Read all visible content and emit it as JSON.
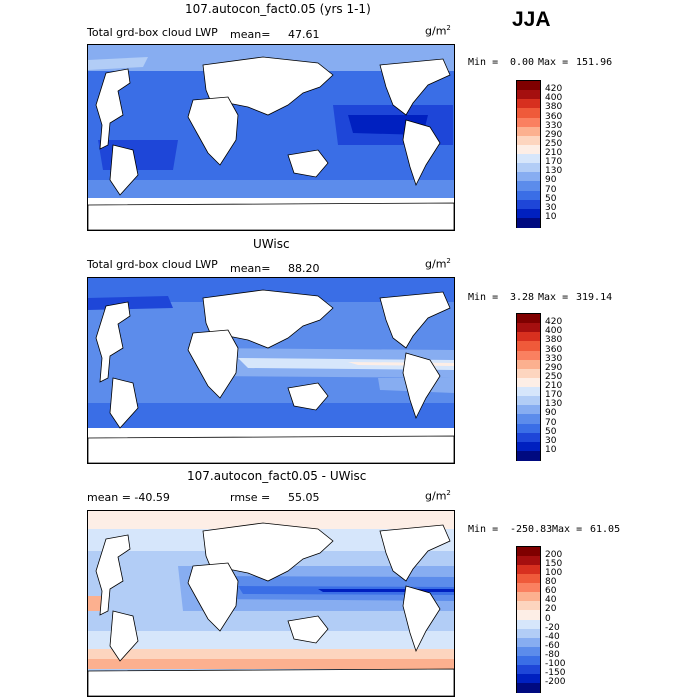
{
  "season": "JJA",
  "panels": [
    {
      "title": "107.autocon_fact0.05 (yrs 1-1)",
      "left_label": "Total grd-box cloud LWP",
      "mean_label": "mean=",
      "mean_value": "47.61",
      "units": "g/m",
      "units_sup": "2",
      "min_label": "Min =",
      "min_value": "0.00",
      "max_label": "Max =",
      "max_value": "151.96",
      "levels": [
        "420",
        "400",
        "380",
        "360",
        "330",
        "290",
        "250",
        "210",
        "170",
        "130",
        "90",
        "70",
        "50",
        "30",
        "10"
      ],
      "colors": [
        "#7f0000",
        "#a50f0f",
        "#d7301f",
        "#ef5a3a",
        "#fa8060",
        "#fcb08f",
        "#fdd5bf",
        "#fdeee6",
        "#d6e6fb",
        "#b2cdf6",
        "#87adf1",
        "#5c8ceb",
        "#3a6ee6",
        "#1e46d8",
        "#0020c0",
        "#000a80"
      ]
    },
    {
      "title": "UWisc",
      "left_label": "Total grd-box cloud LWP",
      "mean_label": "mean=",
      "mean_value": "88.20",
      "units": "g/m",
      "units_sup": "2",
      "min_label": "Min =",
      "min_value": "3.28",
      "max_label": "Max =",
      "max_value": "319.14",
      "levels": [
        "420",
        "400",
        "380",
        "360",
        "330",
        "290",
        "250",
        "210",
        "170",
        "130",
        "90",
        "70",
        "50",
        "30",
        "10"
      ],
      "colors": [
        "#7f0000",
        "#a50f0f",
        "#d7301f",
        "#ef5a3a",
        "#fa8060",
        "#fcb08f",
        "#fdd5bf",
        "#fdeee6",
        "#d6e6fb",
        "#b2cdf6",
        "#87adf1",
        "#5c8ceb",
        "#3a6ee6",
        "#1e46d8",
        "#0020c0",
        "#000a80"
      ]
    },
    {
      "title": "107.autocon_fact0.05 - UWisc",
      "left_label": "mean = -40.59",
      "rmse_label": "rmse =",
      "rmse_value": "55.05",
      "units": "g/m",
      "units_sup": "2",
      "min_label": "Min =",
      "min_value": "-250.83",
      "max_label": "Max =",
      "max_value": "61.05",
      "levels": [
        "200",
        "150",
        "100",
        "80",
        "60",
        "40",
        "20",
        "0",
        "-20",
        "-40",
        "-60",
        "-80",
        "-100",
        "-150",
        "-200"
      ],
      "colors": [
        "#7f0000",
        "#a50f0f",
        "#d7301f",
        "#ef5a3a",
        "#fa8060",
        "#fcb08f",
        "#fdd5bf",
        "#fdeee6",
        "#d6e6fb",
        "#b2cdf6",
        "#87adf1",
        "#5c8ceb",
        "#3a6ee6",
        "#1e46d8",
        "#0020c0",
        "#000a80"
      ]
    }
  ]
}
